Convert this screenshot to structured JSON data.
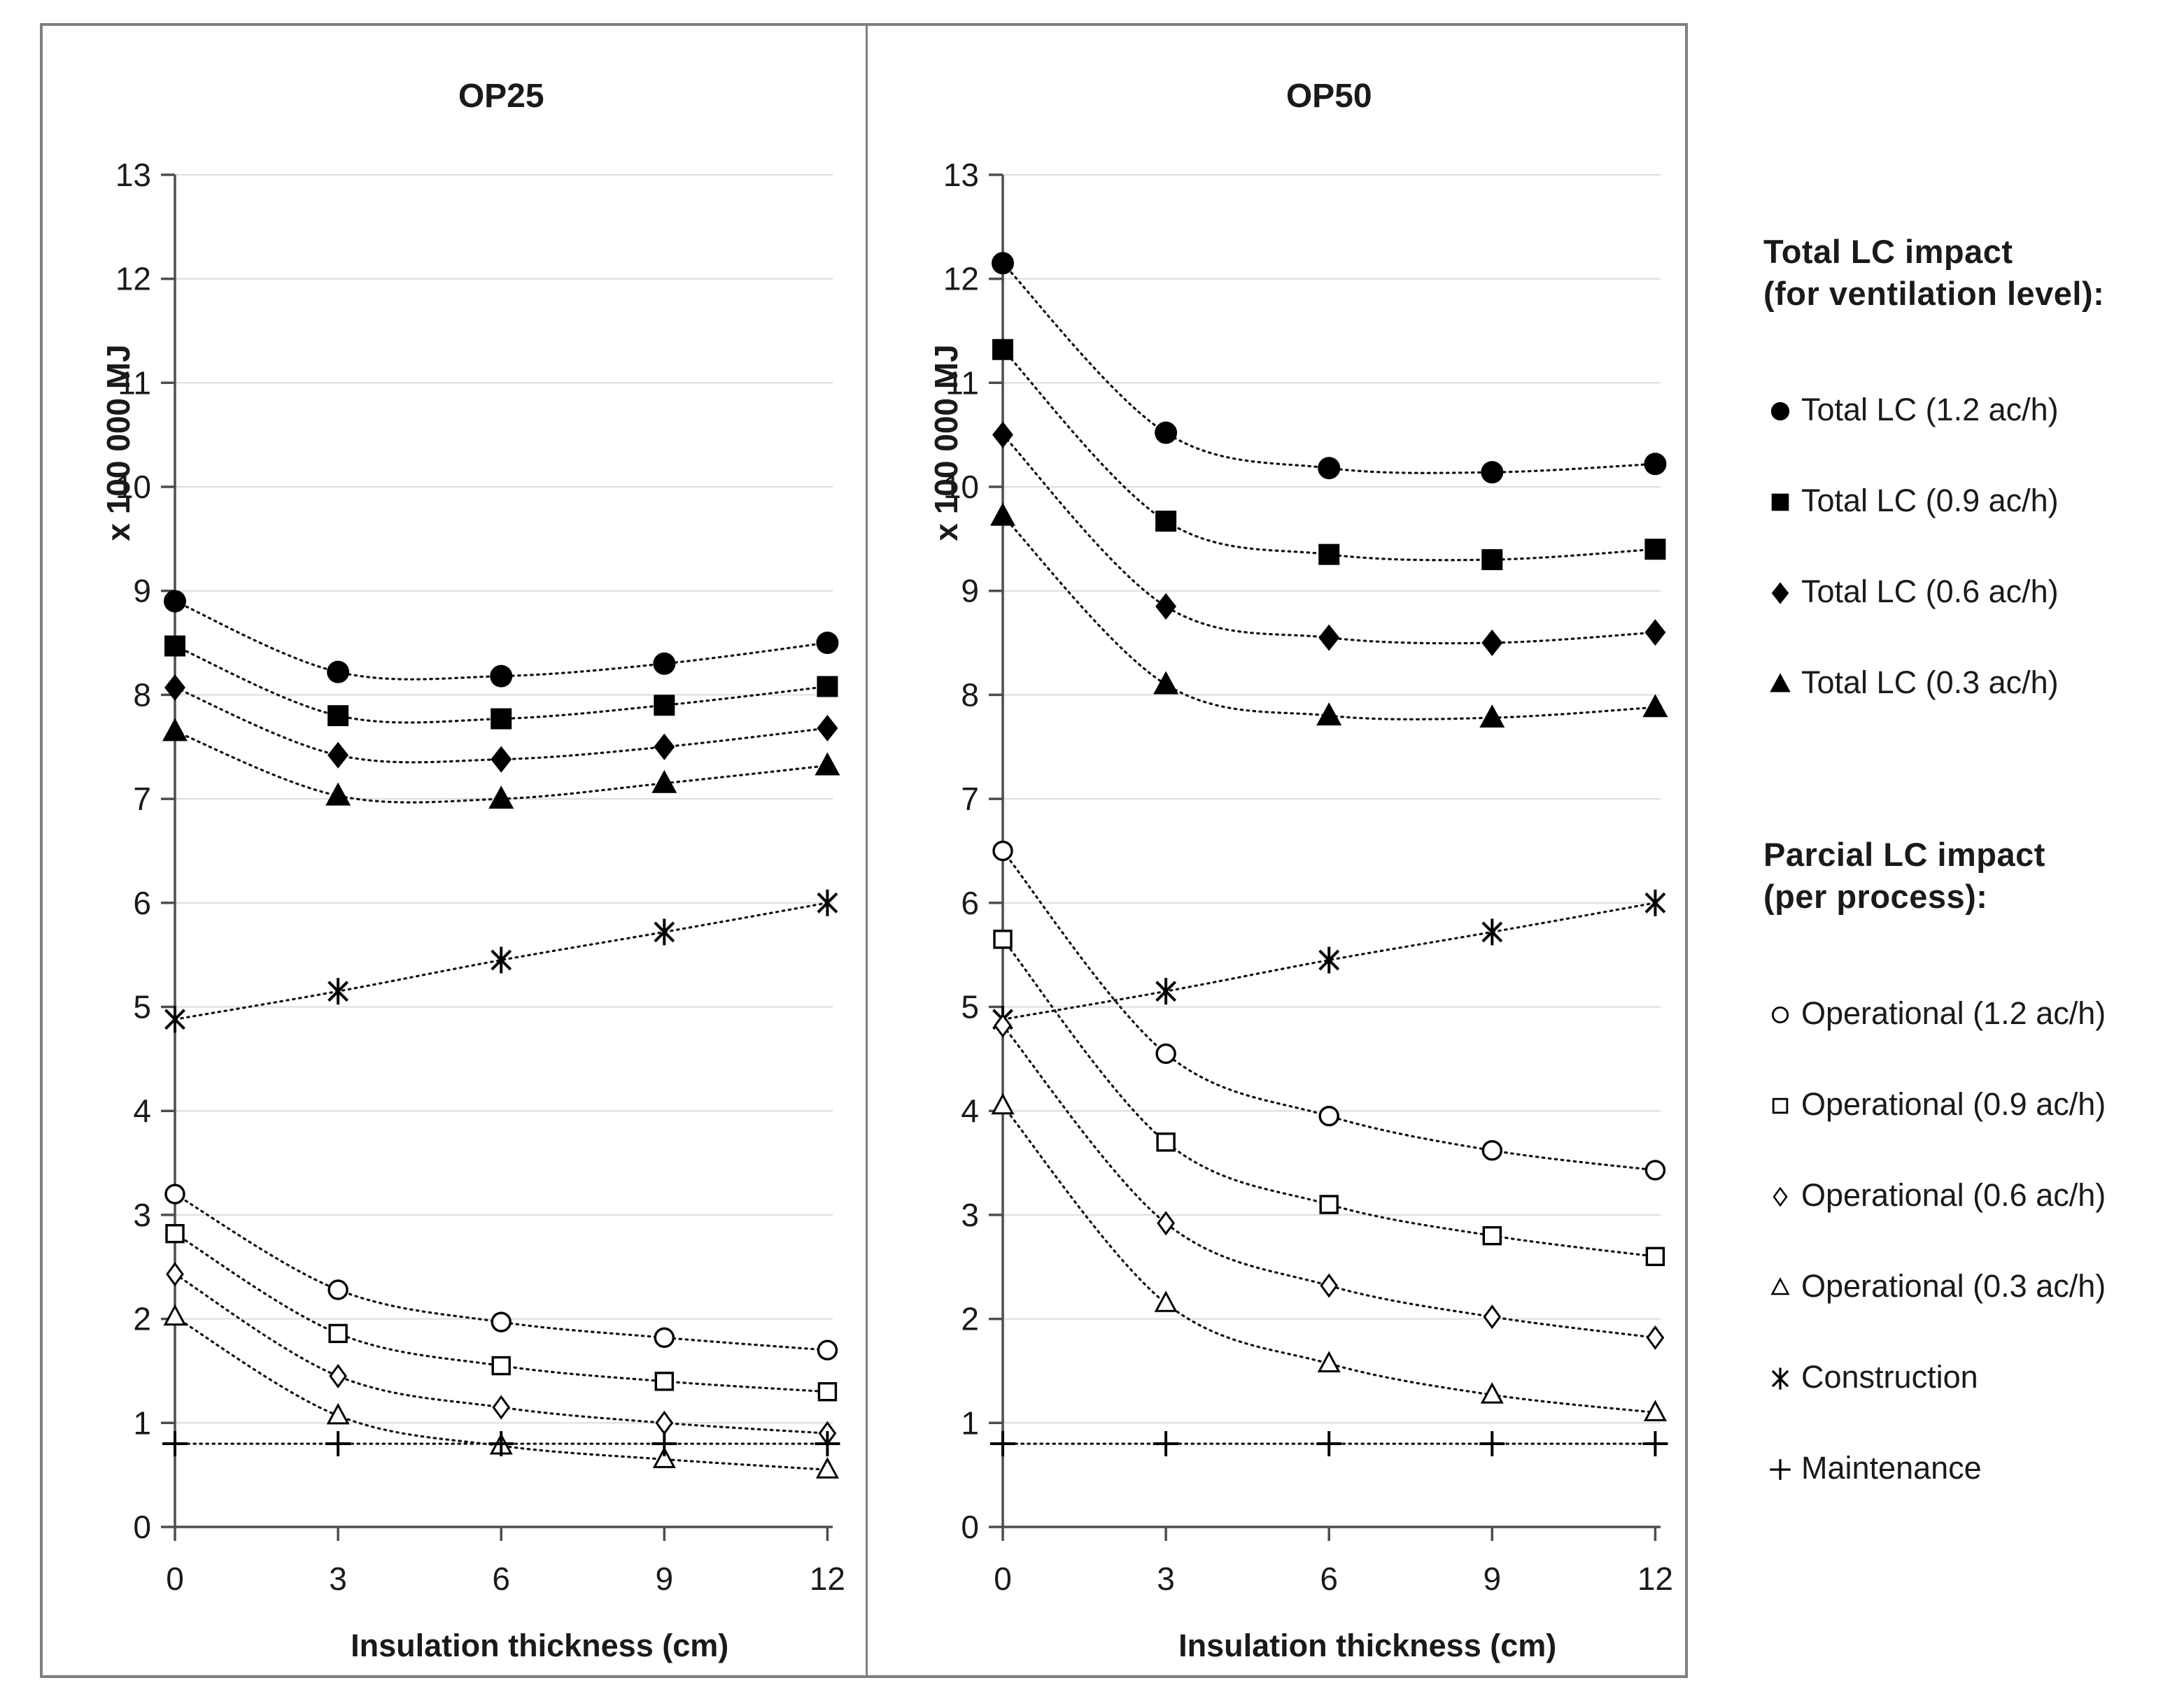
{
  "colors": {
    "marker": "#000000",
    "line": "#111111",
    "grid": "#dcdcdc",
    "frame": "#7f7f7f",
    "text": "#1a1a1a"
  },
  "legend": {
    "groups": [
      {
        "title_lines": [
          "Total LC impact",
          "(for ventilation level):"
        ],
        "items": [
          {
            "marker": "filled-circle",
            "label": "Total LC (1.2 ac/h)"
          },
          {
            "marker": "filled-square",
            "label": "Total LC (0.9 ac/h)"
          },
          {
            "marker": "filled-diamond",
            "label": "Total LC (0.6 ac/h)"
          },
          {
            "marker": "filled-triangle",
            "label": "Total LC (0.3 ac/h)"
          }
        ]
      },
      {
        "title_lines": [
          "Parcial LC impact",
          "(per process):"
        ],
        "items": [
          {
            "marker": "open-circle",
            "label": "Operational (1.2 ac/h)"
          },
          {
            "marker": "open-square",
            "label": "Operational (0.9 ac/h)"
          },
          {
            "marker": "open-diamond",
            "label": "Operational (0.6 ac/h)"
          },
          {
            "marker": "open-triangle",
            "label": "Operational (0.3 ac/h)"
          },
          {
            "marker": "asterisk",
            "label": "Construction"
          },
          {
            "marker": "plus",
            "label": "Maintenance"
          }
        ]
      }
    ]
  },
  "chart_data": [
    {
      "type": "line",
      "title": "OP25",
      "ylabel": "x 100 000 MJ",
      "xlabel": "Insulation thickness  (cm)",
      "x": [
        0,
        3,
        6,
        9,
        12
      ],
      "ylim": [
        0,
        13
      ],
      "ytick_step": 1,
      "grid": true,
      "legend_position": "outside-right",
      "series": [
        {
          "name": "Total LC (1.2 ac/h)",
          "marker": "filled-circle",
          "values": [
            8.9,
            8.22,
            8.18,
            8.3,
            8.5
          ]
        },
        {
          "name": "Total LC (0.9 ac/h)",
          "marker": "filled-square",
          "values": [
            8.47,
            7.8,
            7.77,
            7.9,
            8.08
          ]
        },
        {
          "name": "Total LC (0.6 ac/h)",
          "marker": "filled-diamond",
          "values": [
            8.07,
            7.42,
            7.38,
            7.5,
            7.68
          ]
        },
        {
          "name": "Total LC (0.3 ac/h)",
          "marker": "filled-triangle",
          "values": [
            7.65,
            7.03,
            7.0,
            7.15,
            7.32
          ]
        },
        {
          "name": "Construction",
          "marker": "asterisk",
          "values": [
            4.88,
            5.15,
            5.45,
            5.72,
            6.0
          ]
        },
        {
          "name": "Operational (1.2 ac/h)",
          "marker": "open-circle",
          "values": [
            3.2,
            2.28,
            1.97,
            1.82,
            1.7
          ]
        },
        {
          "name": "Operational (0.9 ac/h)",
          "marker": "open-square",
          "values": [
            2.82,
            1.86,
            1.55,
            1.4,
            1.3
          ]
        },
        {
          "name": "Operational (0.6 ac/h)",
          "marker": "open-diamond",
          "values": [
            2.43,
            1.45,
            1.15,
            1.0,
            0.9
          ]
        },
        {
          "name": "Operational (0.3 ac/h)",
          "marker": "open-triangle",
          "values": [
            2.02,
            1.07,
            0.78,
            0.65,
            0.55
          ]
        },
        {
          "name": "Maintenance",
          "marker": "plus",
          "values": [
            0.8,
            0.8,
            0.8,
            0.8,
            0.8
          ]
        }
      ]
    },
    {
      "type": "line",
      "title": "OP50",
      "ylabel": "x 100 000 MJ",
      "xlabel": "Insulation thickness  (cm)",
      "x": [
        0,
        3,
        6,
        9,
        12
      ],
      "ylim": [
        0,
        13
      ],
      "ytick_step": 1,
      "grid": true,
      "legend_position": "outside-right",
      "series": [
        {
          "name": "Total LC (1.2 ac/h)",
          "marker": "filled-circle",
          "values": [
            12.15,
            10.52,
            10.18,
            10.14,
            10.22
          ]
        },
        {
          "name": "Total LC (0.9 ac/h)",
          "marker": "filled-square",
          "values": [
            11.32,
            9.67,
            9.35,
            9.3,
            9.4
          ]
        },
        {
          "name": "Total LC (0.6 ac/h)",
          "marker": "filled-diamond",
          "values": [
            10.5,
            8.85,
            8.55,
            8.5,
            8.6
          ]
        },
        {
          "name": "Total LC (0.3 ac/h)",
          "marker": "filled-triangle",
          "values": [
            9.72,
            8.1,
            7.8,
            7.78,
            7.88
          ]
        },
        {
          "name": "Construction",
          "marker": "asterisk",
          "values": [
            4.88,
            5.15,
            5.45,
            5.72,
            6.0
          ]
        },
        {
          "name": "Operational (1.2 ac/h)",
          "marker": "open-circle",
          "values": [
            6.5,
            4.55,
            3.95,
            3.62,
            3.43
          ]
        },
        {
          "name": "Operational (0.9 ac/h)",
          "marker": "open-square",
          "values": [
            5.65,
            3.7,
            3.1,
            2.8,
            2.6
          ]
        },
        {
          "name": "Operational (0.6 ac/h)",
          "marker": "open-diamond",
          "values": [
            4.82,
            2.92,
            2.32,
            2.02,
            1.82
          ]
        },
        {
          "name": "Operational (0.3 ac/h)",
          "marker": "open-triangle",
          "values": [
            4.05,
            2.15,
            1.57,
            1.27,
            1.1
          ]
        },
        {
          "name": "Maintenance",
          "marker": "plus",
          "values": [
            0.8,
            0.8,
            0.8,
            0.8,
            0.8
          ]
        }
      ]
    }
  ]
}
